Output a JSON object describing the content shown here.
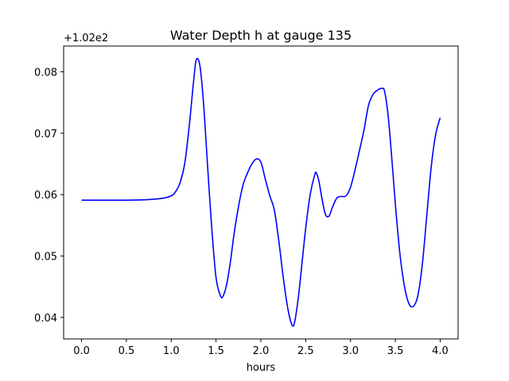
{
  "chart_data": {
    "type": "line",
    "title": "Water Depth h at gauge 135",
    "xlabel": "hours",
    "ylabel": "",
    "y_offset_label": "+1.02e2",
    "xlim": [
      -0.2,
      4.2
    ],
    "ylim": [
      0.0365,
      0.0842
    ],
    "x_ticks": [
      0.0,
      0.5,
      1.0,
      1.5,
      2.0,
      2.5,
      3.0,
      3.5,
      4.0
    ],
    "x_tick_labels": [
      "0.0",
      "0.5",
      "1.0",
      "1.5",
      "2.0",
      "2.5",
      "3.0",
      "3.5",
      "4.0"
    ],
    "y_ticks": [
      0.04,
      0.05,
      0.06,
      0.07,
      0.08
    ],
    "y_tick_labels": [
      "0.04",
      "0.05",
      "0.06",
      "0.07",
      "0.08"
    ],
    "grid": false,
    "series": [
      {
        "color": "#0000ff",
        "x": [
          0.0,
          0.25,
          0.5,
          0.75,
          0.9,
          1.0,
          1.05,
          1.1,
          1.15,
          1.2,
          1.25,
          1.28,
          1.32,
          1.36,
          1.4,
          1.45,
          1.5,
          1.55,
          1.58,
          1.62,
          1.66,
          1.7,
          1.75,
          1.8,
          1.85,
          1.9,
          1.95,
          2.0,
          2.05,
          2.1,
          2.15,
          2.2,
          2.25,
          2.3,
          2.35,
          2.38,
          2.42,
          2.46,
          2.5,
          2.55,
          2.6,
          2.62,
          2.65,
          2.68,
          2.72,
          2.76,
          2.8,
          2.85,
          2.9,
          2.95,
          3.0,
          3.05,
          3.1,
          3.15,
          3.2,
          3.25,
          3.3,
          3.35,
          3.38,
          3.42,
          3.46,
          3.5,
          3.55,
          3.6,
          3.65,
          3.7,
          3.75,
          3.8,
          3.85,
          3.9,
          3.95,
          4.0
        ],
        "y": [
          0.0591,
          0.0591,
          0.0591,
          0.0592,
          0.0594,
          0.0598,
          0.0605,
          0.062,
          0.065,
          0.071,
          0.0785,
          0.082,
          0.081,
          0.075,
          0.066,
          0.055,
          0.0465,
          0.0435,
          0.0435,
          0.0455,
          0.049,
          0.0535,
          0.058,
          0.0615,
          0.0635,
          0.065,
          0.0658,
          0.0653,
          0.0625,
          0.0598,
          0.0575,
          0.0525,
          0.0465,
          0.0415,
          0.0387,
          0.0395,
          0.0435,
          0.049,
          0.0545,
          0.06,
          0.0632,
          0.0635,
          0.062,
          0.0595,
          0.0568,
          0.0565,
          0.058,
          0.0595,
          0.0597,
          0.0598,
          0.0612,
          0.064,
          0.0672,
          0.0705,
          0.0745,
          0.0763,
          0.077,
          0.0773,
          0.0768,
          0.0728,
          0.066,
          0.0585,
          0.0505,
          0.0452,
          0.0423,
          0.0418,
          0.0435,
          0.0485,
          0.0565,
          0.0645,
          0.0698,
          0.0725
        ]
      }
    ]
  }
}
